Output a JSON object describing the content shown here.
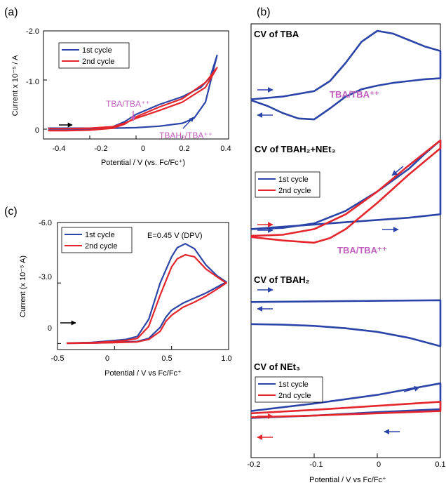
{
  "colors": {
    "first": "#2b44a8",
    "second": "#e4262c",
    "annot": "#c05fbd",
    "black": "#000000"
  },
  "chart_data": [
    {
      "panel": "(a)",
      "type": "line",
      "xlabel": "Potential / V (vs. Fc/Fc⁺)",
      "ylabel": "Current x 10⁻⁵ / A",
      "xlim": [
        -0.4,
        0.4
      ],
      "ylim": [
        0.2,
        -2.0
      ],
      "xticks": [
        "-0.4",
        "-0.2",
        "0",
        "0.2",
        "0.4"
      ],
      "yticks": [
        "-2.0",
        "-1.0",
        "0"
      ],
      "legend": [
        "1st cycle",
        "2nd cycle"
      ],
      "annotations": [
        "TBA/TBA⁺⁺",
        "TBAH₂/TBA⁺⁺"
      ],
      "series": [
        {
          "name": "1st cycle",
          "color": "first",
          "x": [
            -0.38,
            -0.3,
            -0.2,
            -0.1,
            0.0,
            0.1,
            0.2,
            0.25,
            0.3,
            0.35,
            0.35,
            0.32,
            0.28,
            0.2,
            0.1,
            0.0,
            -0.05,
            -0.1,
            -0.2,
            -0.3,
            -0.38
          ],
          "y": [
            -0.02,
            -0.02,
            -0.02,
            -0.02,
            -0.03,
            -0.06,
            -0.12,
            -0.22,
            -0.55,
            -1.5,
            -1.5,
            -1.05,
            -0.85,
            -0.66,
            -0.5,
            -0.3,
            -0.15,
            -0.05,
            0.01,
            0.02,
            0.02
          ]
        },
        {
          "name": "2nd cycle",
          "color": "second",
          "x": [
            -0.38,
            -0.3,
            -0.2,
            -0.1,
            -0.05,
            0.0,
            0.1,
            0.2,
            0.3,
            0.35,
            0.35,
            0.3,
            0.2,
            0.1,
            0.0,
            -0.05,
            -0.1,
            -0.2,
            -0.3,
            -0.38
          ],
          "y": [
            -0.01,
            -0.01,
            -0.02,
            -0.05,
            -0.12,
            -0.22,
            -0.38,
            -0.55,
            -0.85,
            -1.25,
            -1.25,
            -0.95,
            -0.62,
            -0.45,
            -0.25,
            -0.1,
            -0.02,
            0.02,
            0.03,
            0.03
          ]
        }
      ]
    },
    {
      "panel": "(c)",
      "type": "line",
      "xlabel": "Potential / V vs Fc/Fc⁺",
      "ylabel": "Current (x 10⁻⁵ A)",
      "xlim": [
        -0.5,
        1.0
      ],
      "ylim": [
        0.3,
        -6.0
      ],
      "xticks": [
        "-0.5",
        "0",
        "0.5",
        "1.0"
      ],
      "yticks": [
        "-6.0",
        "-3.0",
        "0"
      ],
      "legend": [
        "1st cycle",
        "2nd cycle"
      ],
      "annotations": [
        "E=0.45 V (DPV)"
      ],
      "series": [
        {
          "name": "1st cycle",
          "color": "first",
          "x": [
            -0.42,
            -0.2,
            0.0,
            0.1,
            0.2,
            0.3,
            0.4,
            0.5,
            0.55,
            0.62,
            0.7,
            0.8,
            0.9,
            0.98,
            0.98,
            0.9,
            0.8,
            0.7,
            0.6,
            0.5,
            0.45,
            0.4,
            0.3,
            0.2,
            0.0,
            -0.2,
            -0.42
          ],
          "y": [
            -0.02,
            -0.05,
            -0.15,
            -0.2,
            -0.35,
            -1.2,
            -3.0,
            -4.3,
            -4.75,
            -4.95,
            -4.7,
            -3.9,
            -3.35,
            -3.05,
            -3.05,
            -2.8,
            -2.5,
            -2.25,
            -2.0,
            -1.65,
            -1.3,
            -0.8,
            -0.25,
            -0.1,
            -0.05,
            -0.02,
            -0.01
          ]
        },
        {
          "name": "2nd cycle",
          "color": "second",
          "x": [
            -0.42,
            -0.2,
            0.0,
            0.1,
            0.2,
            0.3,
            0.4,
            0.5,
            0.55,
            0.62,
            0.7,
            0.8,
            0.9,
            0.98,
            0.98,
            0.9,
            0.8,
            0.7,
            0.6,
            0.5,
            0.45,
            0.4,
            0.3,
            0.2,
            0.0,
            -0.2,
            -0.42
          ],
          "y": [
            -0.02,
            -0.04,
            -0.1,
            -0.15,
            -0.25,
            -0.85,
            -2.4,
            -3.8,
            -4.2,
            -4.4,
            -4.3,
            -3.7,
            -3.3,
            -3.0,
            -3.0,
            -2.7,
            -2.35,
            -2.05,
            -1.8,
            -1.4,
            -1.1,
            -0.6,
            -0.2,
            -0.08,
            -0.04,
            -0.02,
            -0.01
          ]
        }
      ]
    },
    {
      "panel": "(b)",
      "type": "line",
      "xlabel": "Potential / V vs Fc/Fc⁺",
      "xlim": [
        -0.2,
        0.1
      ],
      "xticks": [
        "-0.2",
        "-0.1",
        "0",
        "0.1"
      ],
      "subplots": [
        {
          "title": "CV of TBA",
          "annotation": "TBA/TBA⁺⁺",
          "legend": [],
          "series": [
            {
              "name": "1st cycle",
              "color": "first",
              "x": [
                -0.2,
                -0.15,
                -0.1,
                -0.075,
                -0.05,
                -0.025,
                0.0,
                0.025,
                0.05,
                0.075,
                0.1,
                0.1,
                0.075,
                0.05,
                0.025,
                0.0,
                -0.025,
                -0.05,
                -0.075,
                -0.1,
                -0.125,
                -0.15,
                -0.175,
                -0.2
              ],
              "y": [
                0.75,
                0.72,
                0.66,
                0.55,
                0.35,
                0.12,
                0.0,
                0.03,
                0.1,
                0.17,
                0.22,
                0.52,
                0.53,
                0.55,
                0.57,
                0.6,
                0.64,
                0.72,
                0.85,
                0.97,
                0.96,
                0.9,
                0.82,
                0.76
              ]
            }
          ]
        },
        {
          "title": "CV of TBAH₂+NEt₃",
          "annotation": "TBA/TBA⁺⁺",
          "legend": [
            "1st cycle",
            "2nd cycle"
          ],
          "series": [
            {
              "name": "1st cycle",
              "color": "first",
              "x": [
                -0.2,
                -0.15,
                -0.1,
                -0.05,
                0.0,
                0.05,
                0.1,
                0.1,
                0.075,
                0.05,
                0.0,
                -0.05,
                -0.1,
                -0.15,
                -0.2
              ],
              "y": [
                0.78,
                0.76,
                0.74,
                0.72,
                0.7,
                0.68,
                0.65,
                0.0,
                0.12,
                0.25,
                0.45,
                0.62,
                0.73,
                0.77,
                0.78
              ]
            },
            {
              "name": "2nd cycle",
              "color": "second",
              "x": [
                -0.2,
                -0.15,
                -0.1,
                -0.075,
                -0.05,
                0.0,
                0.05,
                0.1,
                0.1,
                0.05,
                0.0,
                -0.05,
                -0.1,
                -0.15,
                -0.2
              ],
              "y": [
                0.85,
                0.88,
                0.9,
                0.86,
                0.78,
                0.55,
                0.3,
                0.07,
                0.0,
                0.22,
                0.45,
                0.65,
                0.78,
                0.83,
                0.84
              ]
            }
          ]
        },
        {
          "title": "CV of TBAH₂",
          "annotation": "",
          "legend": [],
          "series": [
            {
              "name": "1st cycle",
              "color": "first",
              "x": [
                -0.2,
                -0.1,
                0.0,
                0.1,
                0.1,
                0.05,
                0.0,
                -0.05,
                -0.1,
                -0.15,
                -0.2
              ],
              "y": [
                0.18,
                0.17,
                0.16,
                0.15,
                0.92,
                0.78,
                0.68,
                0.62,
                0.58,
                0.56,
                0.55
              ]
            }
          ]
        },
        {
          "title": "CV of NEt₃",
          "annotation": "",
          "legend": [
            "1st cycle",
            "2nd cycle"
          ],
          "series": [
            {
              "name": "1st cycle",
              "color": "first",
              "x": [
                -0.2,
                -0.1,
                0.0,
                0.05,
                0.1,
                0.1,
                0.0,
                -0.1,
                -0.2
              ],
              "y": [
                0.58,
                0.45,
                0.3,
                0.2,
                0.1,
                0.55,
                0.6,
                0.66,
                0.7
              ]
            },
            {
              "name": "2nd cycle",
              "color": "second",
              "x": [
                -0.2,
                -0.1,
                0.0,
                0.1,
                0.1,
                0.0,
                -0.1,
                -0.2
              ],
              "y": [
                0.62,
                0.56,
                0.49,
                0.42,
                0.58,
                0.62,
                0.66,
                0.69
              ]
            }
          ]
        }
      ]
    }
  ]
}
